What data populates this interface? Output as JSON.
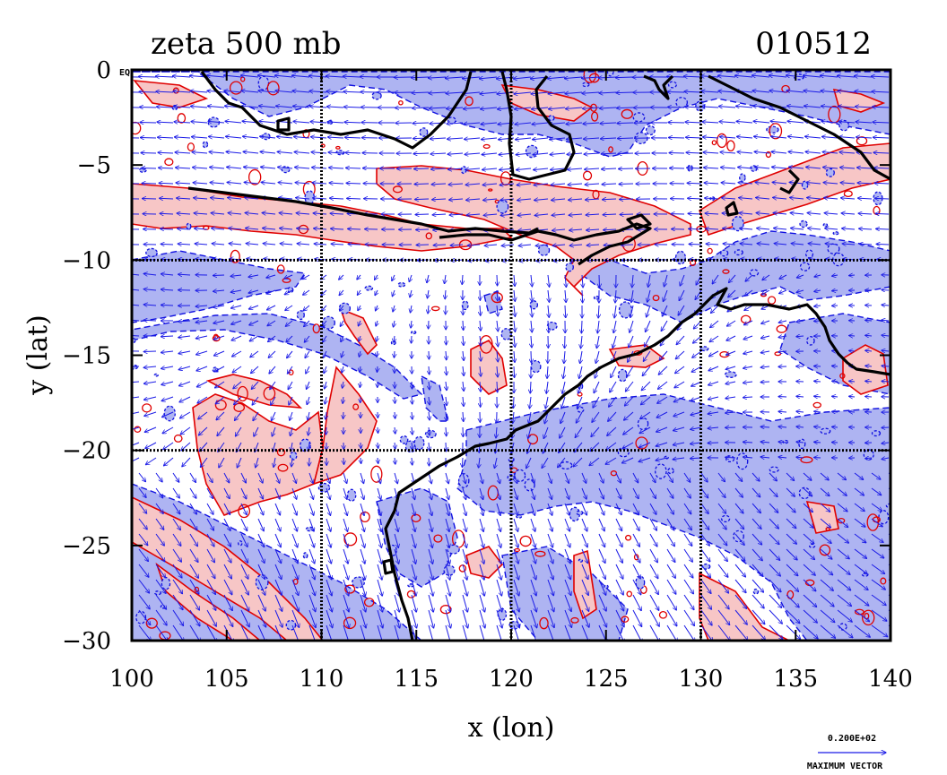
{
  "title_left": "zeta 500 mb",
  "title_right": "010512",
  "corner_label": "EQ",
  "chart_data": {
    "type": "contour-map",
    "xlabel": "x (lon)",
    "ylabel": "y (lat)",
    "xlim": [
      100,
      140
    ],
    "ylim": [
      -30,
      0
    ],
    "x_ticks": [
      100,
      105,
      110,
      115,
      120,
      125,
      130,
      135,
      140
    ],
    "y_ticks": [
      0,
      -5,
      -10,
      -15,
      -20,
      -25,
      -30
    ],
    "x_tick_labels": [
      "100",
      "105",
      "110",
      "115",
      "120",
      "125",
      "130",
      "135",
      "140"
    ],
    "y_tick_labels": [
      "0",
      "−5",
      "−10",
      "−15",
      "−20",
      "−25",
      "−30"
    ],
    "grid_lon": [
      110,
      120,
      130
    ],
    "grid_lat": [
      -10,
      -20
    ],
    "colors": {
      "positive_fill": "#f7c6c6",
      "positive_line": "#e00000",
      "negative_fill": "#aeb4f2",
      "negative_line": "#1010e0",
      "vector": "#1a1ae6",
      "coast": "#000000"
    },
    "vector_legend": {
      "value_label": "0.200E+02",
      "caption": "MAXIMUM VECTOR"
    }
  }
}
